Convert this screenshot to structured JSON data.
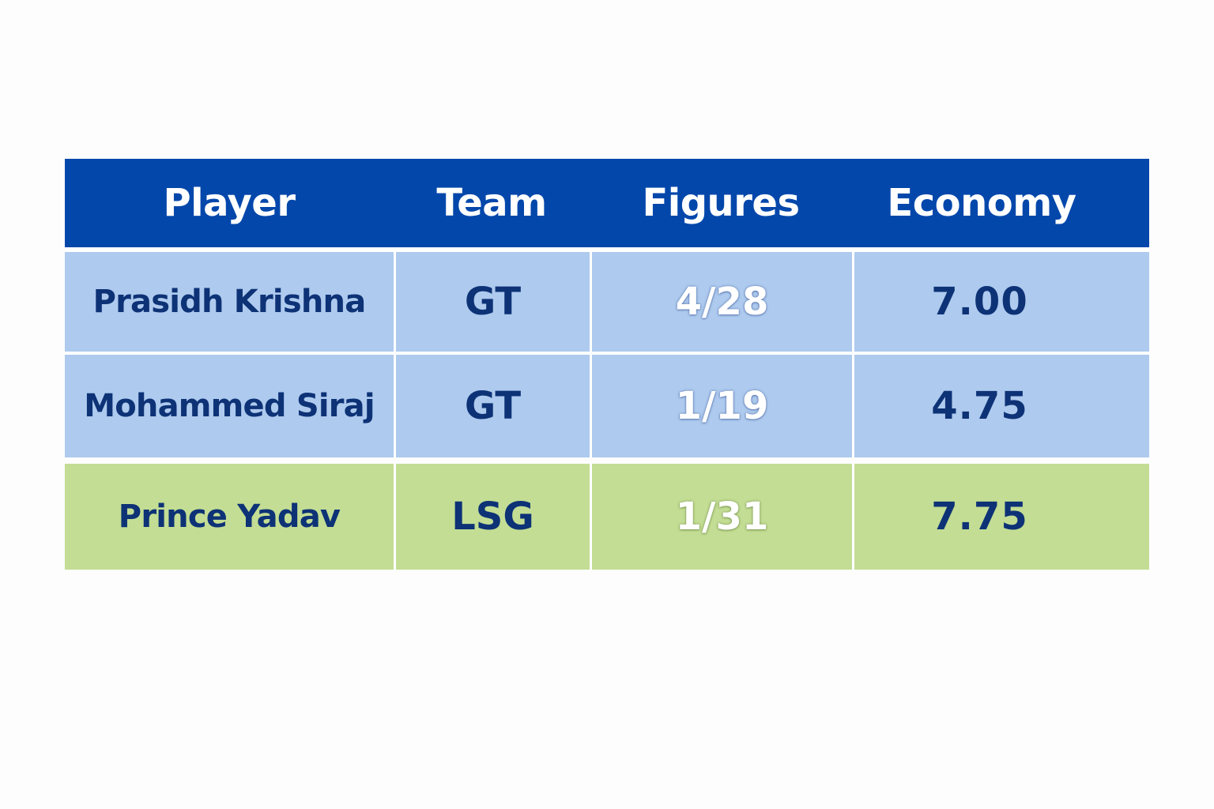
{
  "table": {
    "headers": [
      "Player",
      "Team",
      "Figures",
      "Economy"
    ],
    "rows": [
      {
        "player": "Prasidh Krishna",
        "team": "GT",
        "figures": "4/28",
        "economy": "7.00",
        "highlight": "blue"
      },
      {
        "player": "Mohammed Siraj",
        "team": "GT",
        "figures": "1/19",
        "economy": "4.75",
        "highlight": "blue"
      },
      {
        "player": "Prince Yadav",
        "team": "LSG",
        "figures": "1/31",
        "economy": "7.75",
        "highlight": "green"
      }
    ]
  },
  "colors": {
    "header_bg": "#0347ab",
    "row_blue": "#aecaee",
    "row_green": "#c3dd94",
    "text_dark": "#0d3276"
  }
}
